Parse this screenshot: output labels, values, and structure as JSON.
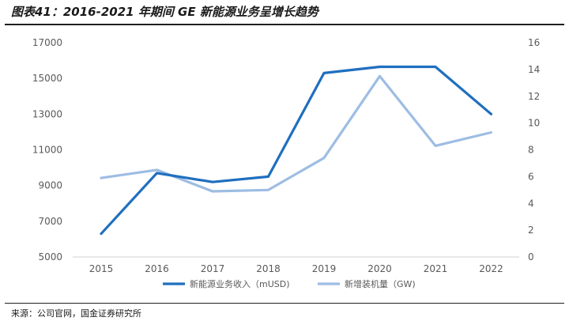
{
  "title": "图表41：2016-2021 年期间 GE 新能源业务呈增长趋势",
  "source": "来源：公司官网，国金证券研究所",
  "chart_data": {
    "type": "line",
    "categories": [
      "2015",
      "2016",
      "2017",
      "2018",
      "2019",
      "2020",
      "2021",
      "2022"
    ],
    "left_axis": {
      "ylim": [
        5000,
        17000
      ],
      "ticks": [
        "5000",
        "7000",
        "9000",
        "11000",
        "13000",
        "15000",
        "17000"
      ]
    },
    "right_axis": {
      "ylim": [
        0,
        16
      ],
      "ticks": [
        "0",
        "2",
        "4",
        "6",
        "8",
        "10",
        "12",
        "14",
        "16"
      ]
    },
    "series": [
      {
        "name": "新能源业务收入（mUSD)",
        "axis": "left",
        "color": "#1f6fbf",
        "values": [
          6300,
          9700,
          9200,
          9500,
          15300,
          15650,
          15650,
          13000
        ]
      },
      {
        "name": "新增装机量（GW)",
        "axis": "right",
        "color": "#9dbde3",
        "values": [
          5.9,
          6.5,
          4.9,
          5.0,
          7.4,
          13.5,
          8.3,
          9.3
        ]
      }
    ],
    "grid": false,
    "legend_position": "bottom"
  }
}
